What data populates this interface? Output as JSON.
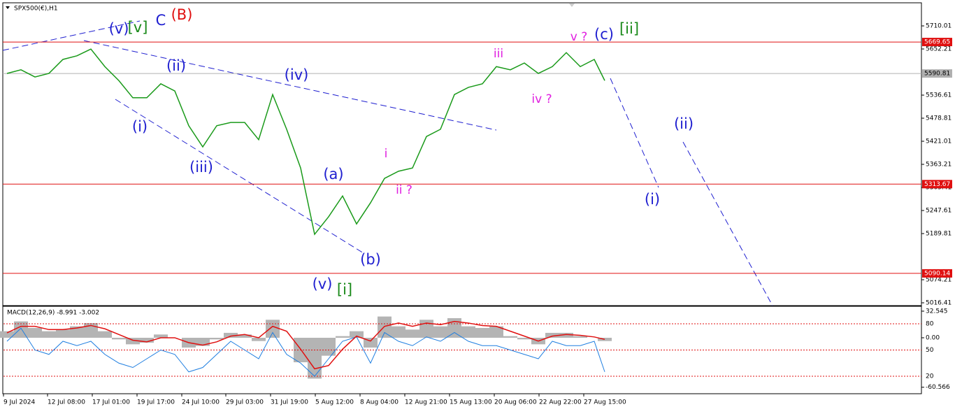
{
  "chart_data": [
    {
      "type": "line",
      "title": "SPX500(€),H1",
      "x": [
        0,
        1,
        2,
        3,
        4,
        5,
        6,
        7,
        8,
        9,
        10,
        11,
        12,
        13,
        14,
        15,
        16,
        17,
        18,
        19,
        20,
        21,
        22,
        23,
        24,
        25,
        26,
        27,
        28,
        29,
        30,
        31,
        32,
        33,
        34,
        35,
        36,
        37,
        38,
        39,
        40,
        41,
        42,
        42.75
      ],
      "values": [
        5591,
        5600,
        5582,
        5591,
        5626,
        5635,
        5652,
        5608,
        5573,
        5530,
        5530,
        5565,
        5547,
        5460,
        5407,
        5460,
        5468,
        5468,
        5425,
        5538,
        5451,
        5354,
        5188,
        5232,
        5284,
        5214,
        5267,
        5328,
        5346,
        5354,
        5433,
        5451,
        5538,
        5556,
        5565,
        5608,
        5600,
        5617,
        5591,
        5608,
        5643,
        5608,
        5626,
        5573
      ],
      "color": "#1a9a1a",
      "xlim": [
        -0.25,
        65.4
      ],
      "xticks": [
        {
          "value": -0.25,
          "label": "9 Jul 2024"
        },
        {
          "value": 2.9,
          "label": "12 Jul 08:00"
        },
        {
          "value": 6.1,
          "label": "17 Jul 01:00"
        },
        {
          "value": 9.3,
          "label": "19 Jul 17:00"
        },
        {
          "value": 12.5,
          "label": "24 Jul 10:00"
        },
        {
          "value": 15.65,
          "label": "29 Jul 03:00"
        },
        {
          "value": 18.85,
          "label": "31 Jul 19:00"
        },
        {
          "value": 22.05,
          "label": "5 Aug 12:00"
        },
        {
          "value": 25.25,
          "label": "8 Aug 04:00"
        },
        {
          "value": 28.45,
          "label": "12 Aug 21:00"
        },
        {
          "value": 31.65,
          "label": "15 Aug 13:00"
        },
        {
          "value": 34.85,
          "label": "20 Aug 06:00"
        },
        {
          "value": 38.05,
          "label": "22 Aug 22:00"
        },
        {
          "value": 41.25,
          "label": "27 Aug 15:00"
        }
      ],
      "ylim": [
        5009.4,
        5766.1
      ],
      "yticks": [
        5710.01,
        5652.21,
        5536.61,
        5478.81,
        5421.01,
        5363.21,
        5305.41,
        5247.61,
        5189.81,
        5074.21,
        5016.41
      ],
      "levels": [
        {
          "value": 5669.65,
          "color": "#e01010"
        },
        {
          "value": 5590.81,
          "color": "#b0b0b0"
        },
        {
          "value": 5313.67,
          "color": "#e01010"
        },
        {
          "value": 5090.14,
          "color": "#e01010"
        }
      ],
      "annotations": [
        {
          "text": "(v)",
          "color": "#1f1fd0"
        },
        {
          "text": "[v]",
          "color": "#1a8a1a"
        },
        {
          "text": "C",
          "color": "#1f1fd0"
        },
        {
          "text": "(B)",
          "color": "#e01010"
        },
        {
          "text": "(ii)",
          "color": "#1f1fd0"
        },
        {
          "text": "(iv)",
          "color": "#1f1fd0"
        },
        {
          "text": "(i)",
          "color": "#1f1fd0"
        },
        {
          "text": "(iii)",
          "color": "#1f1fd0"
        },
        {
          "text": "(a)",
          "color": "#1f1fd0"
        },
        {
          "text": "(b)",
          "color": "#1f1fd0"
        },
        {
          "text": "(v)",
          "color": "#1f1fd0"
        },
        {
          "text": "[i]",
          "color": "#1a8a1a"
        },
        {
          "text": "i",
          "color": "#e020e0"
        },
        {
          "text": "ii ?",
          "color": "#e020e0"
        },
        {
          "text": "iii",
          "color": "#e020e0"
        },
        {
          "text": "iv ?",
          "color": "#e020e0"
        },
        {
          "text": "v ?",
          "color": "#e020e0"
        },
        {
          "text": "(c)",
          "color": "#1f1fd0"
        },
        {
          "text": "[ii]",
          "color": "#1a8a1a"
        },
        {
          "text": "(i)",
          "color": "#1f1fd0"
        },
        {
          "text": "(ii)",
          "color": "#1f1fd0"
        }
      ]
    },
    {
      "type": "macd",
      "title": "MACD(12,26,9) -8.991 -3.002",
      "x": [
        0,
        1,
        2,
        3,
        4,
        5,
        6,
        7,
        8,
        9,
        10,
        11,
        12,
        13,
        14,
        15,
        16,
        17,
        18,
        19,
        20,
        21,
        22,
        23,
        24,
        25,
        26,
        27,
        28,
        29,
        30,
        31,
        32,
        33,
        34,
        35,
        36,
        37,
        38,
        39,
        40,
        41,
        42,
        42.75
      ],
      "xlim": [
        -0.25,
        65.4
      ],
      "histogram": {
        "color": "#b4b4b4",
        "values": [
          8,
          20,
          12,
          8,
          10,
          14,
          18,
          8,
          -2,
          -8,
          -6,
          4,
          0,
          -12,
          -10,
          -2,
          6,
          4,
          -4,
          22,
          0,
          -30,
          -50,
          -22,
          2,
          8,
          -12,
          26,
          14,
          10,
          22,
          14,
          24,
          14,
          12,
          14,
          2,
          -2,
          -8,
          6,
          6,
          2,
          0,
          -4
        ]
      },
      "signal": {
        "color": "#e01010",
        "values": [
          6,
          14,
          14,
          10,
          10,
          12,
          15,
          11,
          4,
          -3,
          -5,
          0,
          0,
          -6,
          -9,
          -5,
          2,
          4,
          0,
          14,
          8,
          -14,
          -38,
          -34,
          -14,
          2,
          -4,
          14,
          18,
          14,
          18,
          16,
          20,
          18,
          15,
          14,
          8,
          2,
          -4,
          2,
          4,
          3,
          1,
          -2
        ]
      },
      "oscillator": {
        "color": "#1e7ee0",
        "axis": "y2",
        "values": [
          60,
          75,
          50,
          45,
          60,
          55,
          60,
          45,
          35,
          30,
          40,
          50,
          45,
          25,
          30,
          45,
          60,
          50,
          40,
          70,
          45,
          35,
          20,
          40,
          60,
          65,
          35,
          70,
          60,
          55,
          65,
          60,
          70,
          60,
          55,
          55,
          50,
          45,
          40,
          60,
          55,
          55,
          60,
          25
        ]
      },
      "ylim": [
        -68.5,
        38.5
      ],
      "yticks": [
        32.545,
        {
          "value": 0,
          "label": "0.00"
        },
        -60.566
      ],
      "y2lim": [
        0,
        100
      ],
      "y2ticks": [
        80,
        50,
        20
      ]
    }
  ]
}
